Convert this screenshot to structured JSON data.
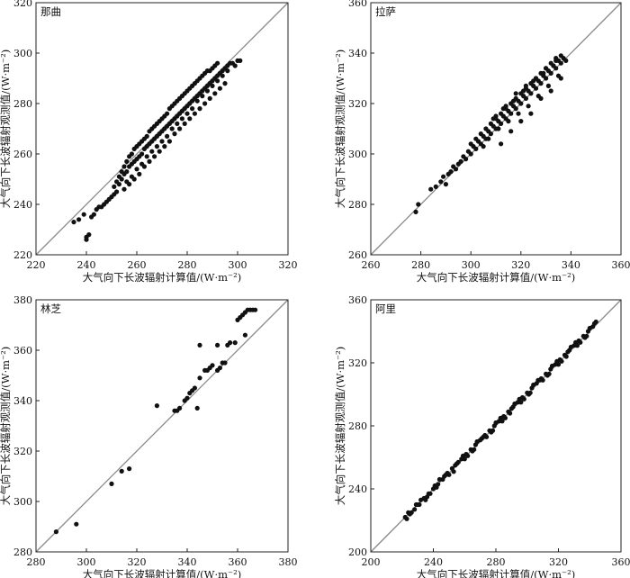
{
  "chart_data": [
    {
      "type": "scatter",
      "title": "那曲",
      "xlabel": "大气向下长波辐射计算值/(W·m⁻²)",
      "ylabel": "大气向下长波辐射观测值/(W·m⁻²)",
      "xlim": [
        220,
        320
      ],
      "ylim": [
        220,
        320
      ],
      "xticks": [
        220,
        240,
        260,
        280,
        300,
        320
      ],
      "yticks": [
        220,
        240,
        260,
        280,
        300,
        320
      ],
      "reference_line": "1:1",
      "points": {
        "x": [
          235,
          237,
          239,
          240,
          240,
          241,
          242,
          243,
          244,
          245,
          246,
          247,
          248,
          249,
          250,
          251,
          251,
          252,
          252,
          253,
          253,
          254,
          254,
          255,
          255,
          256,
          256,
          257,
          257,
          258,
          258,
          259,
          259,
          260,
          260,
          261,
          261,
          262,
          262,
          263,
          263,
          264,
          264,
          265,
          265,
          266,
          266,
          267,
          267,
          268,
          268,
          269,
          269,
          270,
          270,
          271,
          271,
          272,
          272,
          273,
          273,
          274,
          274,
          275,
          275,
          276,
          276,
          277,
          277,
          278,
          278,
          279,
          279,
          280,
          280,
          281,
          281,
          282,
          282,
          283,
          283,
          284,
          284,
          285,
          285,
          286,
          286,
          287,
          287,
          288,
          288,
          289,
          289,
          290,
          290,
          291,
          291,
          292,
          292,
          293,
          294,
          295,
          296,
          297,
          298,
          299,
          300,
          301,
          256,
          258,
          260,
          262,
          264,
          266,
          268,
          270,
          272,
          274,
          276,
          278,
          280,
          282,
          284,
          286,
          288,
          290,
          292,
          294,
          296,
          255,
          257,
          259,
          261,
          263,
          265,
          267,
          269,
          271,
          273,
          275,
          277,
          279,
          281,
          283,
          285,
          287,
          289,
          291,
          293,
          295
        ],
        "y": [
          233,
          234,
          236,
          227,
          226,
          228,
          235,
          236,
          238,
          239,
          239,
          240,
          241,
          242,
          243,
          244,
          247,
          245,
          249,
          248,
          251,
          250,
          253,
          252,
          255,
          253,
          257,
          255,
          259,
          256,
          260,
          257,
          262,
          258,
          263,
          259,
          264,
          260,
          265,
          262,
          266,
          263,
          267,
          264,
          269,
          265,
          270,
          266,
          271,
          267,
          272,
          268,
          273,
          269,
          274,
          270,
          275,
          271,
          276,
          272,
          278,
          273,
          279,
          274,
          280,
          275,
          281,
          276,
          282,
          277,
          283,
          278,
          284,
          279,
          285,
          280,
          286,
          281,
          287,
          282,
          288,
          283,
          289,
          284,
          290,
          285,
          291,
          286,
          292,
          287,
          293,
          288,
          293,
          289,
          294,
          290,
          295,
          291,
          296,
          292,
          293,
          294,
          295,
          296,
          296,
          295,
          297,
          297,
          249,
          251,
          254,
          256,
          259,
          261,
          263,
          265,
          267,
          270,
          272,
          274,
          276,
          278,
          281,
          283,
          285,
          287,
          289,
          291,
          293,
          246,
          248,
          250,
          252,
          255,
          257,
          259,
          261,
          263,
          265,
          268,
          270,
          272,
          274,
          276,
          278,
          280,
          282,
          284,
          286,
          288
        ]
      }
    },
    {
      "type": "scatter",
      "title": "拉萨",
      "xlabel": "大气向下长波辐射计算值/(W·m⁻²)",
      "ylabel": "大气向下长波辐射观测值/(W·m⁻²)",
      "xlim": [
        260,
        360
      ],
      "ylim": [
        260,
        360
      ],
      "xticks": [
        260,
        280,
        300,
        320,
        340,
        360
      ],
      "yticks": [
        260,
        280,
        300,
        320,
        340,
        360
      ],
      "reference_line": "1:1",
      "points": {
        "x": [
          278,
          279,
          284,
          286,
          288,
          289,
          290,
          291,
          292,
          293,
          294,
          295,
          296,
          297,
          298,
          299,
          300,
          300,
          301,
          302,
          302,
          303,
          304,
          304,
          305,
          306,
          306,
          307,
          308,
          308,
          309,
          310,
          310,
          311,
          312,
          312,
          313,
          314,
          314,
          315,
          316,
          316,
          317,
          318,
          318,
          319,
          320,
          320,
          321,
          322,
          322,
          323,
          324,
          324,
          325,
          326,
          326,
          327,
          328,
          328,
          329,
          330,
          330,
          331,
          332,
          332,
          333,
          334,
          334,
          335,
          336,
          336,
          337,
          338,
          305,
          307,
          309,
          311,
          313,
          315,
          317,
          319,
          321,
          323,
          325,
          327,
          329,
          331,
          333,
          335,
          310,
          314,
          318,
          322,
          326,
          330,
          334,
          312,
          316,
          320,
          324,
          328,
          332,
          336
        ],
        "y": [
          277,
          280,
          286,
          287,
          289,
          291,
          288,
          292,
          293,
          295,
          294,
          296,
          297,
          299,
          298,
          301,
          300,
          304,
          303,
          302,
          306,
          305,
          304,
          308,
          307,
          306,
          310,
          309,
          308,
          312,
          311,
          310,
          314,
          313,
          312,
          316,
          315,
          314,
          318,
          317,
          316,
          320,
          319,
          318,
          322,
          321,
          320,
          324,
          323,
          322,
          326,
          325,
          324,
          328,
          327,
          326,
          330,
          329,
          328,
          332,
          331,
          330,
          334,
          333,
          332,
          336,
          335,
          334,
          338,
          337,
          336,
          339,
          338,
          337,
          303,
          306,
          314,
          310,
          318,
          313,
          321,
          316,
          325,
          319,
          329,
          323,
          332,
          327,
          335,
          331,
          315,
          319,
          324,
          327,
          330,
          334,
          337,
          304,
          309,
          313,
          316,
          322,
          325,
          330
        ]
      }
    },
    {
      "type": "scatter",
      "title": "林芝",
      "xlabel": "大气向下长波辐射计算值/(W·m⁻²)",
      "ylabel": "大气向下长波辐射观测值/(W·m⁻²)",
      "xlim": [
        280,
        380
      ],
      "ylim": [
        280,
        380
      ],
      "xticks": [
        280,
        300,
        320,
        340,
        360,
        380
      ],
      "yticks": [
        280,
        300,
        320,
        340,
        360,
        380
      ],
      "reference_line": "1:1",
      "points": {
        "x": [
          288,
          296,
          310,
          314,
          317,
          328,
          335,
          336,
          337,
          339,
          340,
          341,
          342,
          343,
          344,
          345,
          347,
          348,
          349,
          350,
          352,
          353,
          354,
          355,
          356,
          357,
          359,
          360,
          361,
          362,
          363,
          364,
          365,
          366,
          367,
          345,
          352,
          363
        ],
        "y": [
          288,
          291,
          307,
          312,
          313,
          338,
          336,
          336,
          337,
          340,
          341,
          343,
          344,
          345,
          337,
          349,
          352,
          352,
          353,
          354,
          352,
          353,
          355,
          355,
          362,
          363,
          363,
          372,
          373,
          374,
          375,
          376,
          376,
          376,
          376,
          362,
          362,
          366
        ]
      }
    },
    {
      "type": "scatter",
      "title": "阿里",
      "xlabel": "大气向下长波辐射计算值/(W·m⁻²)",
      "ylabel": "大气向下长波辐射观测值/(W·m⁻²)",
      "xlim": [
        200,
        360
      ],
      "ylim": [
        200,
        360
      ],
      "xticks": [
        200,
        240,
        280,
        320,
        360
      ],
      "yticks": [
        200,
        240,
        280,
        320,
        360
      ],
      "reference_line": "1:1",
      "points": {
        "x": [
          222,
          225,
          228,
          231,
          234,
          237,
          240,
          243,
          246,
          249,
          252,
          255,
          258,
          261,
          264,
          267,
          270,
          273,
          276,
          279,
          282,
          285,
          288,
          291,
          294,
          297,
          300,
          303,
          306,
          309,
          312,
          315,
          318,
          321,
          324,
          327,
          330,
          333,
          336,
          339,
          342,
          344,
          223,
          226,
          229,
          232,
          235,
          238,
          241,
          244,
          247,
          250,
          253,
          256,
          259,
          262,
          265,
          268,
          271,
          274,
          277,
          280,
          283,
          286,
          289,
          292,
          295,
          298,
          301,
          304,
          307,
          310,
          313,
          316,
          319,
          322,
          325,
          328,
          331,
          334,
          337,
          340,
          343,
          224,
          230,
          236,
          242,
          248,
          254,
          260,
          266,
          272,
          278,
          284,
          290,
          296,
          302,
          308,
          314,
          320,
          326,
          332,
          338
        ],
        "y": [
          222,
          224,
          227,
          230,
          234,
          237,
          240,
          243,
          246,
          250,
          253,
          256,
          259,
          262,
          265,
          268,
          271,
          274,
          277,
          280,
          283,
          286,
          289,
          292,
          295,
          298,
          301,
          304,
          307,
          310,
          313,
          316,
          319,
          322,
          325,
          328,
          331,
          334,
          337,
          340,
          343,
          346,
          221,
          225,
          230,
          233,
          233,
          237,
          242,
          246,
          248,
          249,
          251,
          257,
          261,
          261,
          264,
          270,
          272,
          273,
          276,
          282,
          285,
          285,
          288,
          294,
          297,
          297,
          300,
          306,
          309,
          309,
          312,
          318,
          321,
          321,
          324,
          330,
          333,
          333,
          336,
          342,
          345,
          225,
          230,
          235,
          241,
          249,
          255,
          259,
          265,
          273,
          277,
          283,
          291,
          295,
          301,
          309,
          313,
          319,
          327,
          331,
          337
        ]
      }
    }
  ]
}
